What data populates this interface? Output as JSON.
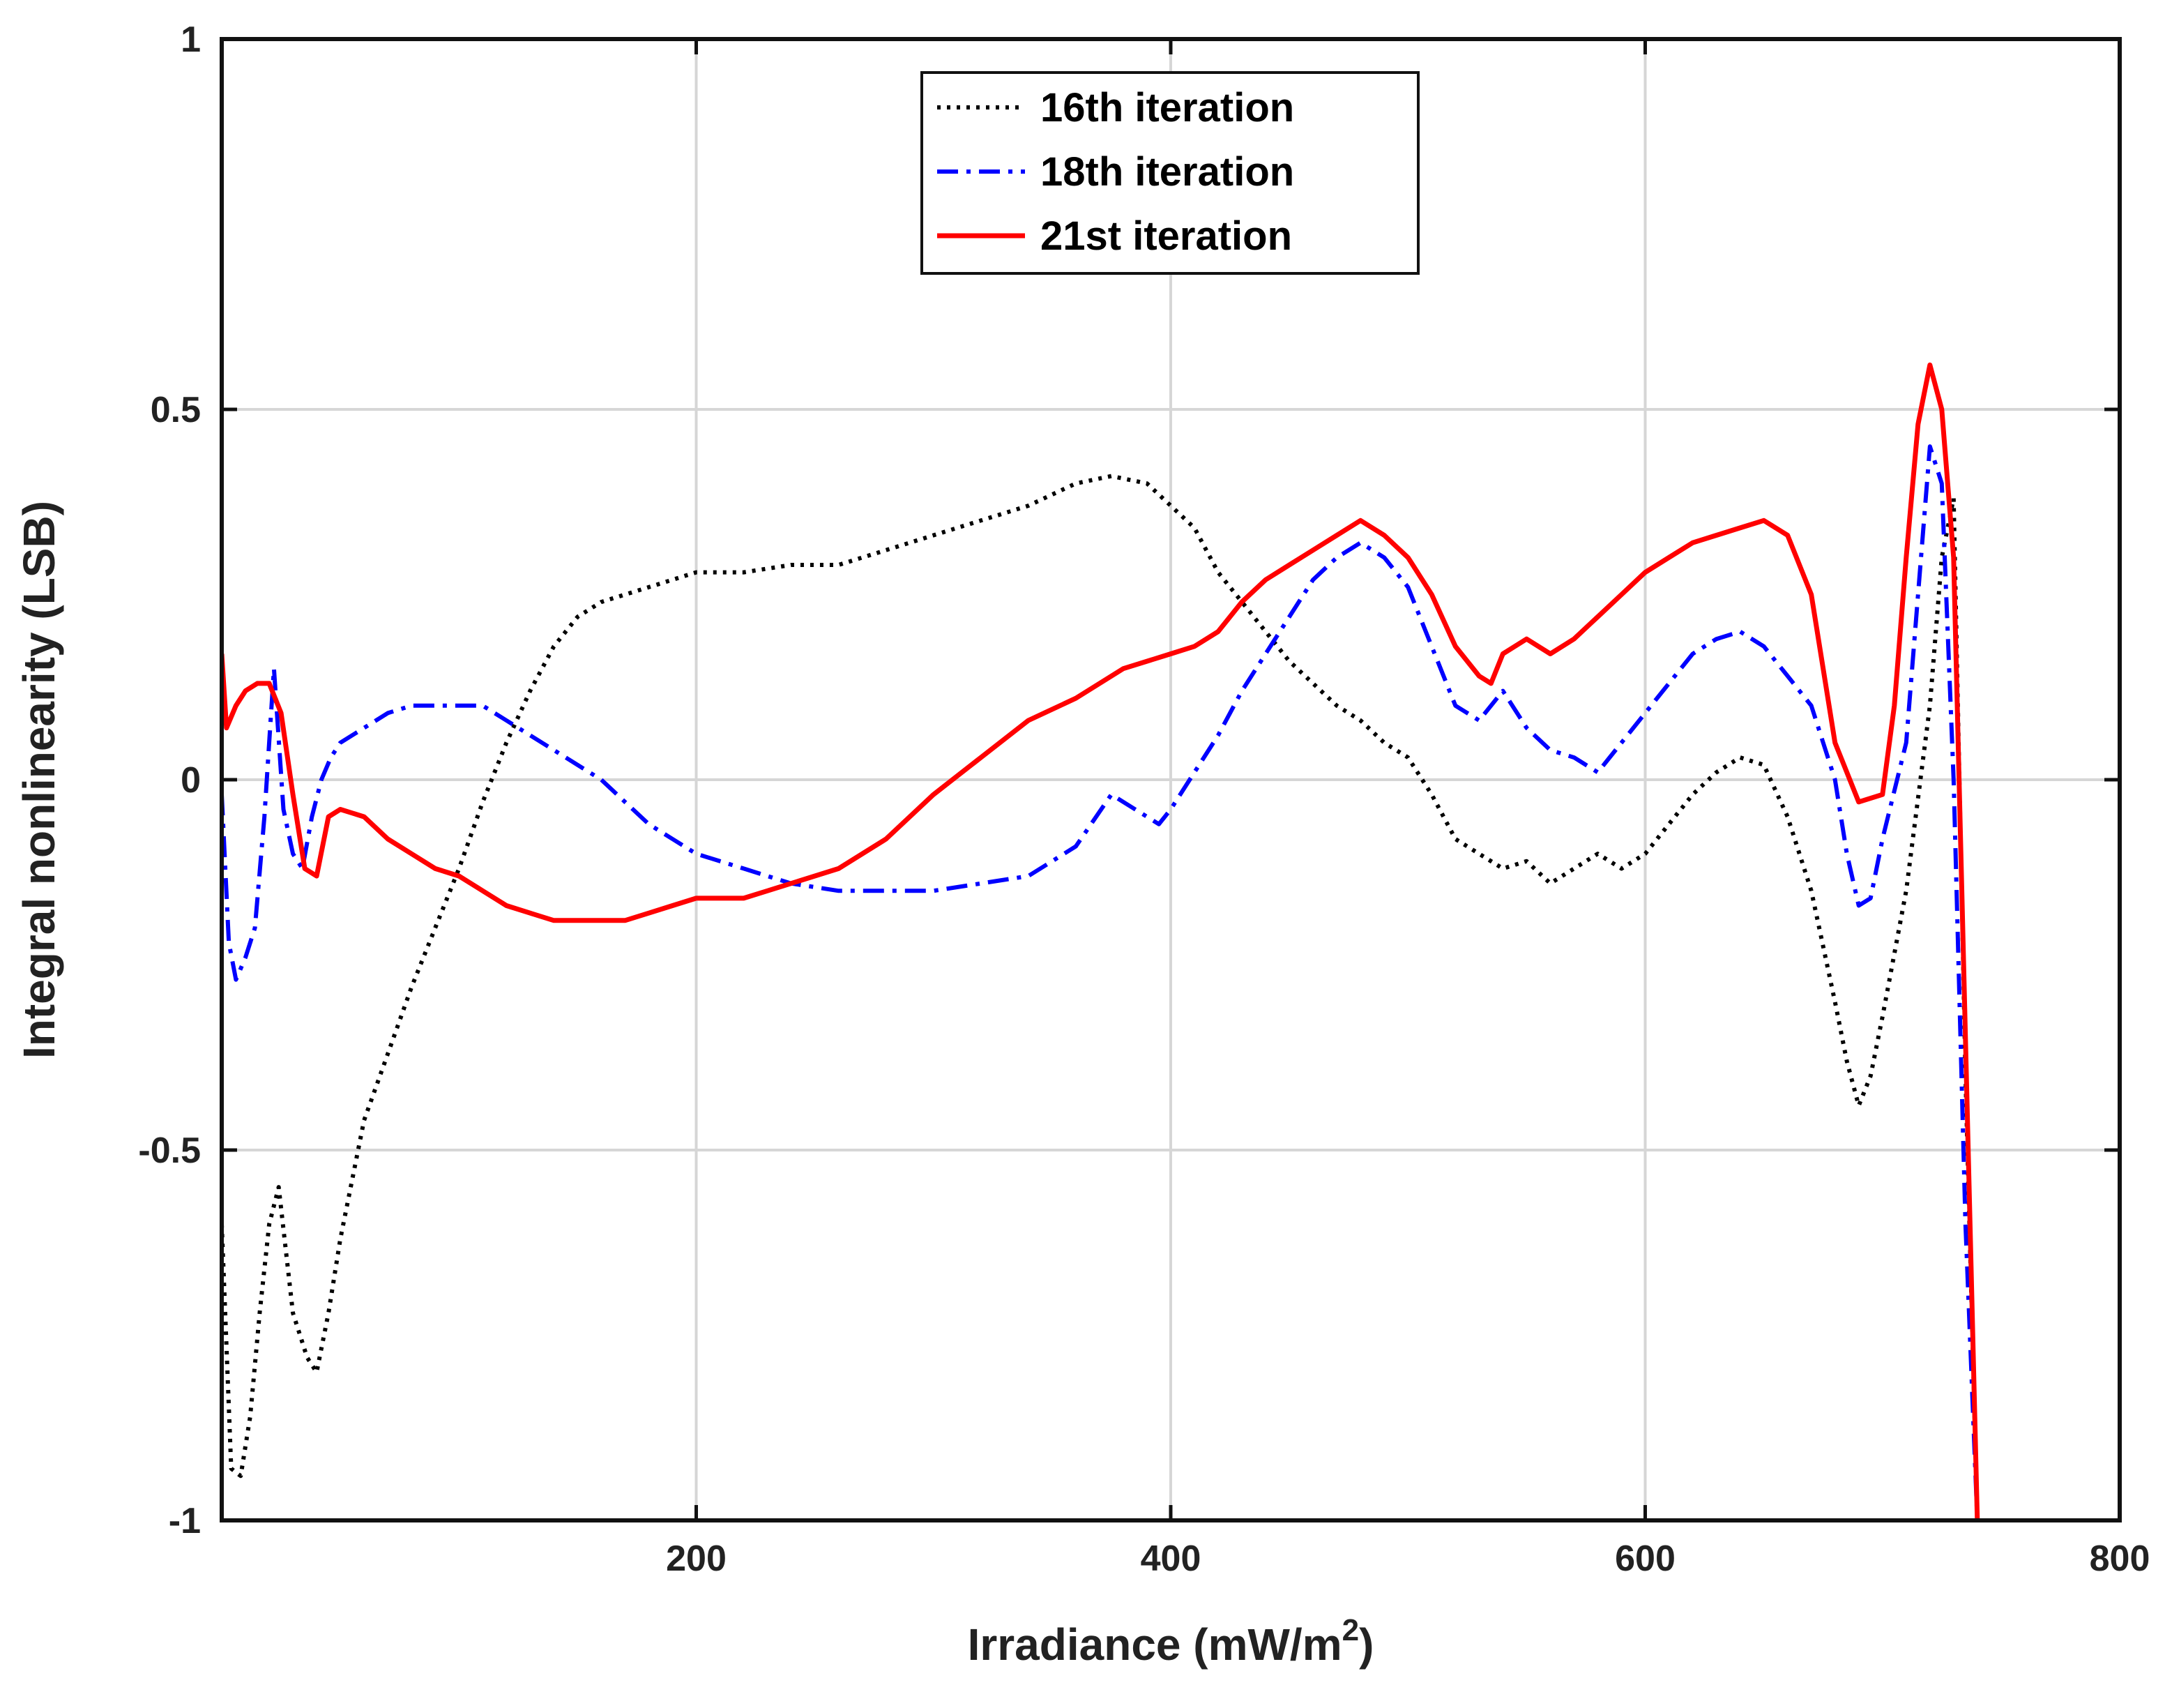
{
  "chart_data": {
    "type": "line",
    "title": "",
    "xlabel": "Irradiance (mW/m",
    "xlabel_sup": "2",
    "xlabel_close": ")",
    "ylabel": "Integral nonlinearity (LSB)",
    "xlim": [
      0,
      800
    ],
    "ylim": [
      -1,
      1
    ],
    "x_ticks": [
      200,
      400,
      600,
      800
    ],
    "x_tick_labels": [
      "200",
      "400",
      "600",
      "800"
    ],
    "y_ticks": [
      1,
      0.5,
      0,
      -0.5,
      -1
    ],
    "y_tick_labels": [
      "1",
      "0.5",
      "0",
      "-0.5",
      "-1"
    ],
    "grid": true,
    "legend_position": "top-center",
    "series": [
      {
        "name": "16th iteration",
        "color": "#000000",
        "style": "dotted",
        "x": [
          0,
          4,
          8,
          12,
          16,
          20,
          24,
          30,
          36,
          40,
          45,
          50,
          55,
          60,
          70,
          80,
          90,
          100,
          110,
          120,
          130,
          140,
          150,
          160,
          170,
          180,
          190,
          200,
          220,
          240,
          260,
          280,
          300,
          320,
          340,
          360,
          375,
          390,
          400,
          410,
          420,
          430,
          440,
          450,
          460,
          470,
          480,
          490,
          500,
          510,
          520,
          530,
          540,
          550,
          560,
          570,
          580,
          590,
          600,
          610,
          620,
          630,
          640,
          650,
          660,
          670,
          680,
          685,
          690,
          695,
          700,
          710,
          720,
          725,
          730,
          735,
          740
        ],
        "values": [
          -0.6,
          -0.93,
          -0.94,
          -0.86,
          -0.72,
          -0.6,
          -0.55,
          -0.72,
          -0.78,
          -0.8,
          -0.72,
          -0.62,
          -0.54,
          -0.46,
          -0.37,
          -0.28,
          -0.2,
          -0.12,
          -0.03,
          0.05,
          0.12,
          0.18,
          0.22,
          0.24,
          0.25,
          0.26,
          0.27,
          0.28,
          0.28,
          0.29,
          0.29,
          0.31,
          0.33,
          0.35,
          0.37,
          0.4,
          0.41,
          0.4,
          0.37,
          0.34,
          0.28,
          0.24,
          0.2,
          0.16,
          0.13,
          0.1,
          0.08,
          0.05,
          0.03,
          -0.02,
          -0.08,
          -0.1,
          -0.12,
          -0.11,
          -0.14,
          -0.12,
          -0.1,
          -0.12,
          -0.1,
          -0.06,
          -0.02,
          0.01,
          0.03,
          0.02,
          -0.05,
          -0.15,
          -0.3,
          -0.38,
          -0.44,
          -0.4,
          -0.32,
          -0.15,
          0.1,
          0.3,
          0.38,
          -0.4,
          -1.0
        ]
      },
      {
        "name": "18th iteration",
        "color": "#0000ff",
        "style": "dashdot",
        "x": [
          0,
          3,
          6,
          10,
          14,
          18,
          22,
          26,
          30,
          34,
          38,
          42,
          46,
          50,
          60,
          70,
          80,
          90,
          100,
          110,
          120,
          130,
          140,
          150,
          160,
          170,
          180,
          190,
          200,
          210,
          220,
          230,
          240,
          260,
          280,
          300,
          320,
          340,
          360,
          375,
          385,
          395,
          400,
          410,
          420,
          430,
          440,
          450,
          460,
          470,
          480,
          490,
          500,
          510,
          520,
          530,
          540,
          550,
          560,
          570,
          580,
          590,
          600,
          610,
          620,
          630,
          640,
          650,
          660,
          670,
          680,
          685,
          690,
          695,
          700,
          710,
          715,
          720,
          725,
          730,
          735,
          740
        ],
        "values": [
          -0.02,
          -0.22,
          -0.27,
          -0.24,
          -0.2,
          -0.05,
          0.15,
          -0.04,
          -0.1,
          -0.12,
          -0.05,
          0.0,
          0.03,
          0.05,
          0.07,
          0.09,
          0.1,
          0.1,
          0.1,
          0.1,
          0.08,
          0.06,
          0.04,
          0.02,
          0.0,
          -0.03,
          -0.06,
          -0.08,
          -0.1,
          -0.11,
          -0.12,
          -0.13,
          -0.14,
          -0.15,
          -0.15,
          -0.15,
          -0.14,
          -0.13,
          -0.09,
          -0.02,
          -0.04,
          -0.06,
          -0.04,
          0.01,
          0.06,
          0.12,
          0.17,
          0.22,
          0.27,
          0.3,
          0.32,
          0.3,
          0.26,
          0.18,
          0.1,
          0.08,
          0.12,
          0.07,
          0.04,
          0.03,
          0.01,
          0.05,
          0.09,
          0.13,
          0.17,
          0.19,
          0.2,
          0.18,
          0.14,
          0.1,
          0.0,
          -0.1,
          -0.17,
          -0.16,
          -0.08,
          0.05,
          0.25,
          0.45,
          0.4,
          0.0,
          -0.6,
          -1.0
        ]
      },
      {
        "name": "21st iteration",
        "color": "#ff0000",
        "style": "solid",
        "x": [
          0,
          2,
          6,
          10,
          15,
          20,
          25,
          30,
          35,
          40,
          45,
          50,
          60,
          70,
          80,
          90,
          100,
          110,
          120,
          130,
          140,
          150,
          160,
          170,
          180,
          190,
          200,
          210,
          220,
          230,
          240,
          260,
          280,
          300,
          320,
          340,
          360,
          380,
          400,
          410,
          420,
          430,
          440,
          450,
          460,
          470,
          480,
          490,
          500,
          510,
          520,
          530,
          535,
          540,
          550,
          560,
          570,
          580,
          590,
          600,
          610,
          620,
          630,
          640,
          650,
          660,
          670,
          680,
          690,
          700,
          705,
          710,
          715,
          720,
          725,
          730,
          740
        ],
        "values": [
          0.17,
          0.07,
          0.1,
          0.12,
          0.13,
          0.13,
          0.09,
          -0.02,
          -0.12,
          -0.13,
          -0.05,
          -0.04,
          -0.05,
          -0.08,
          -0.1,
          -0.12,
          -0.13,
          -0.15,
          -0.17,
          -0.18,
          -0.19,
          -0.19,
          -0.19,
          -0.19,
          -0.18,
          -0.17,
          -0.16,
          -0.16,
          -0.16,
          -0.15,
          -0.14,
          -0.12,
          -0.08,
          -0.02,
          0.03,
          0.08,
          0.11,
          0.15,
          0.17,
          0.18,
          0.2,
          0.24,
          0.27,
          0.29,
          0.31,
          0.33,
          0.35,
          0.33,
          0.3,
          0.25,
          0.18,
          0.14,
          0.13,
          0.17,
          0.19,
          0.17,
          0.19,
          0.22,
          0.25,
          0.28,
          0.3,
          0.32,
          0.33,
          0.34,
          0.35,
          0.33,
          0.25,
          0.05,
          -0.03,
          -0.02,
          0.1,
          0.3,
          0.48,
          0.56,
          0.5,
          0.3,
          -1.0
        ]
      }
    ]
  }
}
